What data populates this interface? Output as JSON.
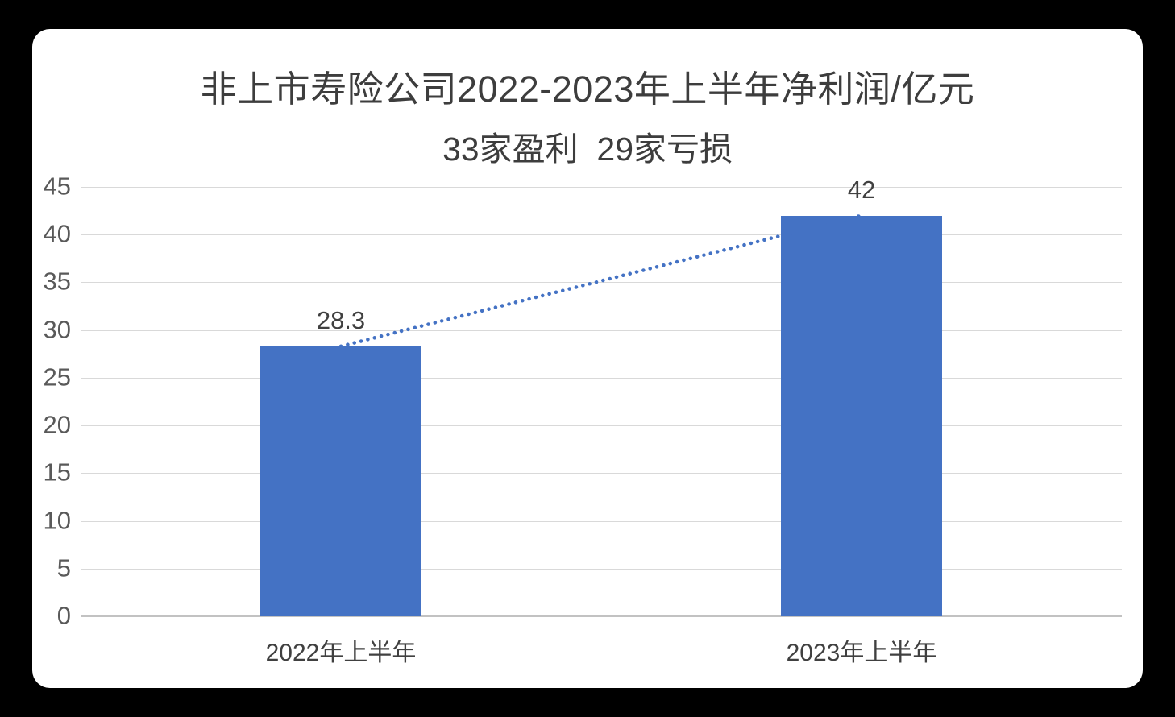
{
  "chart_data": {
    "type": "bar",
    "title": "非上市寿险公司2022-2023年上半年净利润/亿元",
    "subtitle": "33家盈利  29家亏损",
    "categories": [
      "2022年上半年",
      "2023年上半年"
    ],
    "values": [
      28.3,
      42
    ],
    "value_labels": [
      "28.3",
      "42"
    ],
    "ylim": [
      0,
      45
    ],
    "yticks": [
      0,
      5,
      10,
      15,
      20,
      25,
      30,
      35,
      40,
      45
    ],
    "grid": true,
    "legend": false,
    "trendline": {
      "style": "dotted",
      "connects": [
        "2022年上半年",
        "2023年上半年"
      ]
    },
    "colors": {
      "bar": "#4472C4",
      "trendline": "#4472C4",
      "gridline": "#D9D9D9",
      "axis_line": "#C2C2C2",
      "title_text": "#3D3D3D",
      "tick_text": "#595959",
      "background": "#FFFFFF",
      "frame": "#000000"
    }
  }
}
